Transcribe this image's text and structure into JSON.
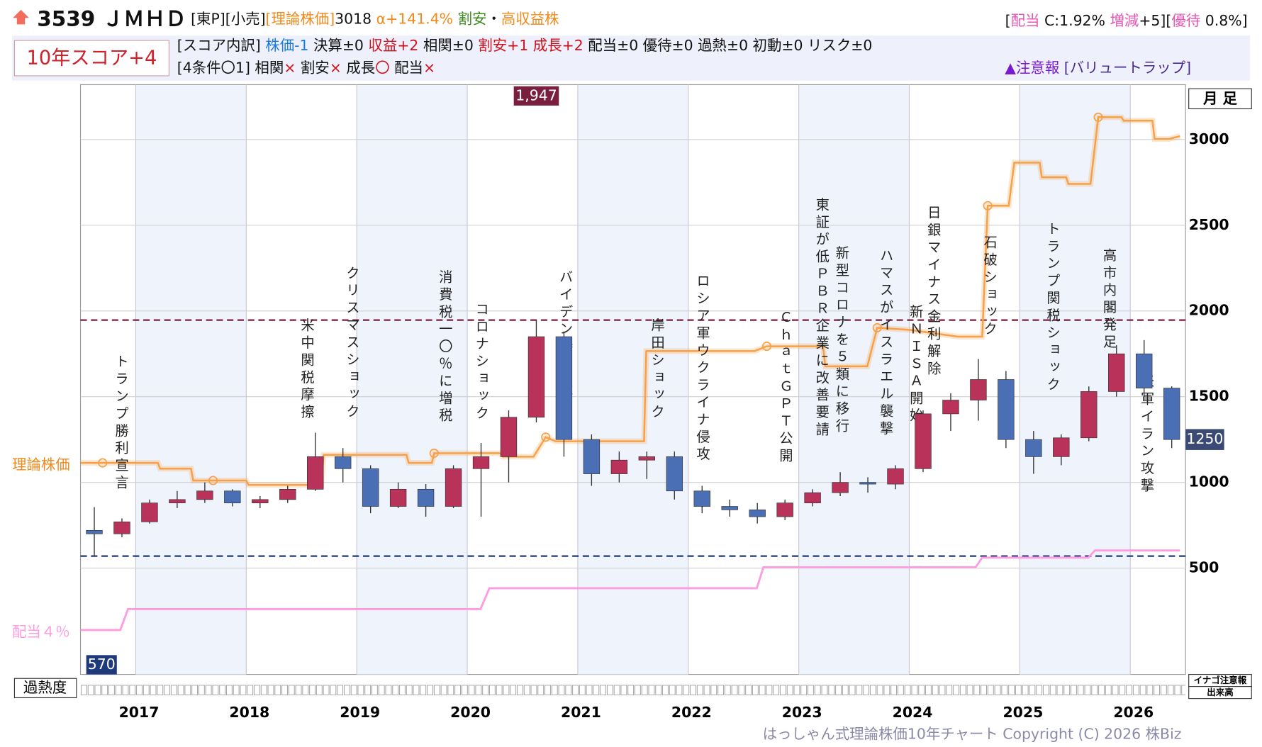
{
  "header": {
    "line1": [
      {
        "text": "3539 ＪＭＨＤ",
        "color": "#111",
        "bold": true
      },
      {
        "text": " [東P][小売]",
        "color": "#111"
      },
      {
        "text": "[理論株価]",
        "color": "#f08a1c"
      },
      {
        "text": "3018",
        "color": "#111"
      },
      {
        "text": " α+141.4%",
        "color": "#f08a1c"
      },
      {
        "text": " 割安",
        "color": "#3a8a1a"
      },
      {
        "text": "・",
        "color": "#111"
      },
      {
        "text": "高収益株",
        "color": "#f08a1c"
      }
    ],
    "line1_right": [
      {
        "text": "[",
        "color": "#111"
      },
      {
        "text": "配当",
        "color": "#e855b5"
      },
      {
        "text": " C:1.92% ",
        "color": "#111"
      },
      {
        "text": "増減",
        "color": "#e855b5"
      },
      {
        "text": "+5][",
        "color": "#111"
      },
      {
        "text": "優待",
        "color": "#e855b5"
      },
      {
        "text": " 0.8%]",
        "color": "#111"
      }
    ],
    "score": "10年スコア+4",
    "line2": [
      {
        "text": "[スコア内訳]",
        "color": "#111"
      },
      {
        "text": " 株価-1",
        "color": "#1a7adb"
      },
      {
        "text": " 決算±0",
        "color": "#111"
      },
      {
        "text": " 収益+2",
        "color": "#d0101a"
      },
      {
        "text": " 相関±0",
        "color": "#111"
      },
      {
        "text": " 割安+1",
        "color": "#d0101a"
      },
      {
        "text": " 成長+2",
        "color": "#d0101a"
      },
      {
        "text": " 配当±0 優待±0 過熱±0 初動±0 リスク±0",
        "color": "#111"
      }
    ],
    "line3": [
      {
        "text": "[4条件〇1]",
        "color": "#111"
      },
      {
        "text": " 相関",
        "color": "#111"
      },
      {
        "text": "×",
        "color": "#d0101a"
      },
      {
        "text": " 割安",
        "color": "#111"
      },
      {
        "text": "×",
        "color": "#d0101a"
      },
      {
        "text": " 成長",
        "color": "#111"
      },
      {
        "text": "〇",
        "color": "#d0101a"
      },
      {
        "text": " 配当",
        "color": "#111"
      },
      {
        "text": "×",
        "color": "#d0101a"
      }
    ],
    "line3_right": [
      {
        "text": "▲注意報",
        "color": "#7a1ad0"
      },
      {
        "text": " [バリュートラップ]",
        "color": "#4a2a8a"
      }
    ]
  },
  "chart_data": {
    "type": "candlestick",
    "period": "月 足",
    "x": [
      2016.625,
      2016.875,
      2017.125,
      2017.375,
      2017.625,
      2017.875,
      2018.125,
      2018.375,
      2018.625,
      2018.875,
      2019.125,
      2019.375,
      2019.625,
      2019.875,
      2020.125,
      2020.375,
      2020.625,
      2020.875,
      2021.125,
      2021.375,
      2021.625,
      2021.875,
      2022.125,
      2022.375,
      2022.625,
      2022.875,
      2023.125,
      2023.375,
      2023.625,
      2023.875,
      2024.125,
      2024.375,
      2024.625,
      2024.875,
      2025.125,
      2025.375,
      2025.625,
      2025.875,
      2026.125,
      2026.375
    ],
    "open": [
      720,
      700,
      770,
      880,
      900,
      950,
      880,
      900,
      960,
      1150,
      1080,
      860,
      960,
      860,
      1080,
      1150,
      1380,
      1850,
      1250,
      1050,
      1130,
      1150,
      950,
      860,
      840,
      800,
      880,
      940,
      1000,
      990,
      1080,
      1400,
      1480,
      1600,
      1250,
      1150,
      1260,
      1530,
      1750,
      1550
    ],
    "high": [
      856,
      790,
      900,
      950,
      1000,
      960,
      920,
      980,
      1290,
      1200,
      1100,
      1000,
      990,
      1100,
      1230,
      1420,
      1947,
      1880,
      1280,
      1180,
      1180,
      1180,
      980,
      900,
      880,
      900,
      960,
      1060,
      1030,
      1100,
      1420,
      1520,
      1720,
      1650,
      1300,
      1280,
      1560,
      1800,
      1830,
      1560
    ],
    "low": [
      570,
      680,
      760,
      850,
      880,
      860,
      850,
      880,
      950,
      1000,
      820,
      850,
      800,
      850,
      800,
      1000,
      1350,
      1150,
      980,
      1000,
      1020,
      900,
      820,
      800,
      760,
      780,
      860,
      920,
      940,
      960,
      1060,
      1300,
      1360,
      1200,
      1050,
      1100,
      1240,
      1500,
      1500,
      1200
    ],
    "close": [
      700,
      770,
      880,
      900,
      950,
      880,
      900,
      960,
      1150,
      1080,
      860,
      960,
      860,
      1080,
      1150,
      1380,
      1850,
      1250,
      1050,
      1130,
      1150,
      950,
      860,
      840,
      800,
      880,
      940,
      1000,
      990,
      1080,
      1400,
      1480,
      1600,
      1250,
      1150,
      1260,
      1530,
      1750,
      1550,
      1250
    ],
    "up_color": "#b8325a",
    "down_color": "#4a6fb5",
    "xlim": [
      2016.5,
      2026.5
    ],
    "xticks": [
      2017,
      2018,
      2019,
      2020,
      2021,
      2022,
      2023,
      2024,
      2025,
      2026
    ],
    "ylim": [
      -120,
      3320
    ],
    "yticks": [
      500,
      1000,
      1500,
      2000,
      2500,
      3000
    ],
    "grid": true,
    "theory": {
      "name": "理論株価",
      "color": "#f7a048",
      "x": [
        2016.5,
        2017.2,
        2017.22,
        2017.5,
        2017.52,
        2018.0,
        2018.02,
        2018.68,
        2018.7,
        2019.45,
        2019.47,
        2019.68,
        2019.7,
        2020.3,
        2020.32,
        2020.6,
        2020.71,
        2020.8,
        2021.6,
        2021.62,
        2022.6,
        2022.71,
        2023.22,
        2023.24,
        2023.62,
        2023.71,
        2024.0,
        2024.44,
        2024.66,
        2024.71,
        2024.9,
        2024.95,
        2025.18,
        2025.2,
        2025.42,
        2025.44,
        2025.64,
        2025.71,
        2025.92,
        2025.94,
        2026.2,
        2026.22,
        2026.35,
        2026.45
      ],
      "values": [
        1114,
        1114,
        1080,
        1080,
        1011,
        1011,
        985,
        985,
        1161,
        1161,
        1114,
        1114,
        1170,
        1170,
        1150,
        1150,
        1264,
        1240,
        1240,
        1766,
        1766,
        1794,
        1794,
        1677,
        1677,
        1902,
        1890,
        1850,
        1850,
        2614,
        2614,
        2865,
        2865,
        2780,
        2780,
        2741,
        2741,
        3130,
        3130,
        3110,
        3110,
        3003,
        3003,
        3020
      ]
    },
    "markers": {
      "x": [
        2016.7,
        2017.7,
        2019.7,
        2020.71,
        2022.71,
        2023.71,
        2024.71,
        2025.71
      ],
      "values": [
        1114,
        1011,
        1170,
        1264,
        1794,
        1902,
        2614,
        3130
      ]
    },
    "dividend": {
      "name": "配当４％",
      "color": "#ff9be0",
      "x": [
        2016.5,
        2016.86,
        2016.93,
        2020.12,
        2020.2,
        2022.62,
        2022.68,
        2024.6,
        2024.66,
        2025.62,
        2025.68,
        2026.45
      ],
      "values": [
        139,
        139,
        261,
        261,
        383,
        383,
        505,
        505,
        561,
        561,
        603,
        603
      ]
    },
    "max_line": {
      "value": 1947,
      "label": "1,947",
      "color": "#7a1e3e"
    },
    "min_line": {
      "value": 570,
      "label": "570",
      "color": "#1f3a7a"
    },
    "last_price": 1250,
    "annotations": [
      {
        "text": "トランプ勝利宣言",
        "x": 2016.86
      },
      {
        "text": "米中関税摩擦",
        "x": 2018.54
      },
      {
        "text": "クリスマスショック",
        "x": 2018.95
      },
      {
        "text": "消費税一〇％に増税",
        "x": 2019.79
      },
      {
        "text": "コロナショック",
        "x": 2020.12
      },
      {
        "text": "バイデン勝利宣言",
        "x": 2020.88
      },
      {
        "text": "岸田ショック",
        "x": 2021.71
      },
      {
        "text": "ロシア軍ウクライナ侵攻",
        "x": 2022.12
      },
      {
        "text": "ＣｈａｔＧＰＴ公開",
        "x": 2022.87
      },
      {
        "text": "東証が低ＰＢＲ企業に改善要請",
        "x": 2023.2
      },
      {
        "text": "新型コロナを５類に移行",
        "x": 2023.38
      },
      {
        "text": "ハマスがイスラエル襲撃",
        "x": 2023.78
      },
      {
        "text": "新ＮＩＳＡ開始",
        "x": 2024.05
      },
      {
        "text": "日銀マイナス金利解除",
        "x": 2024.21
      },
      {
        "text": "石破ショック",
        "x": 2024.72
      },
      {
        "text": "トランプ関税ショック",
        "x": 2025.29
      },
      {
        "text": "高市内閣発足",
        "x": 2025.8
      },
      {
        "text": "米軍イラン攻撃",
        "x": 2026.14
      }
    ],
    "overheat_label": "過熱度",
    "inago_label": "イナゴ注意報",
    "volume_label": "出来高",
    "footer": "はっしゃん式理論株価10年チャート Copyright (C) 2026 株Biz"
  }
}
